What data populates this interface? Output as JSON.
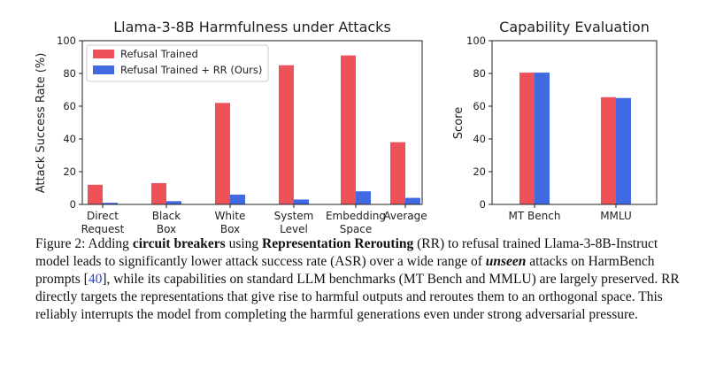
{
  "chart_data": [
    {
      "type": "bar",
      "title": "Llama-3-8B Harmfulness under Attacks",
      "ylabel": "Attack Success Rate (%)",
      "xlabel": "",
      "ylim": [
        0,
        100
      ],
      "yticks": [
        0,
        20,
        40,
        60,
        80,
        100
      ],
      "grid": false,
      "legend": "top-left",
      "categories": [
        [
          "Direct",
          "Request"
        ],
        [
          "Black",
          "Box"
        ],
        [
          "White",
          "Box"
        ],
        [
          "System",
          "Level"
        ],
        [
          "Embedding",
          "Space"
        ],
        [
          "Average"
        ]
      ],
      "series": [
        {
          "name": "Refusal Trained",
          "color": "#ef5159",
          "values": [
            12,
            13,
            62,
            85,
            91,
            38
          ]
        },
        {
          "name": "Refusal Trained + RR (Ours)",
          "color": "#4169e1",
          "values": [
            1,
            2,
            6,
            3,
            8,
            4
          ]
        }
      ]
    },
    {
      "type": "bar",
      "title": "Capability Evaluation",
      "ylabel": "Score",
      "xlabel": "",
      "ylim": [
        0,
        100
      ],
      "yticks": [
        0,
        20,
        40,
        60,
        80,
        100
      ],
      "grid": false,
      "categories": [
        [
          "MT Bench"
        ],
        [
          "MMLU"
        ]
      ],
      "series": [
        {
          "name": "Refusal Trained",
          "color": "#ef5159",
          "values": [
            80.5,
            65.5
          ]
        },
        {
          "name": "Refusal Trained + RR (Ours)",
          "color": "#4169e1",
          "values": [
            80.5,
            65
          ]
        }
      ]
    }
  ],
  "caption": {
    "label": "Figure 2:",
    "t1": " Adding ",
    "b1": "circuit breakers",
    "t2": " using ",
    "b2": "Representation Rerouting",
    "t3": " (RR) to refusal trained Llama-3-8B-Instruct model leads to significantly lower attack success rate (ASR) over a wide range of ",
    "emph": "unseen",
    "t4": " attacks on HarmBench prompts [",
    "cite": "40",
    "t5": "], while its capabilities on standard LLM benchmarks (MT Bench and MMLU) are largely preserved. RR directly targets the representations that give rise to harmful outputs and reroutes them to an orthogonal space. This reliably interrupts the model from completing the harmful generations even under strong adversarial pressure."
  }
}
